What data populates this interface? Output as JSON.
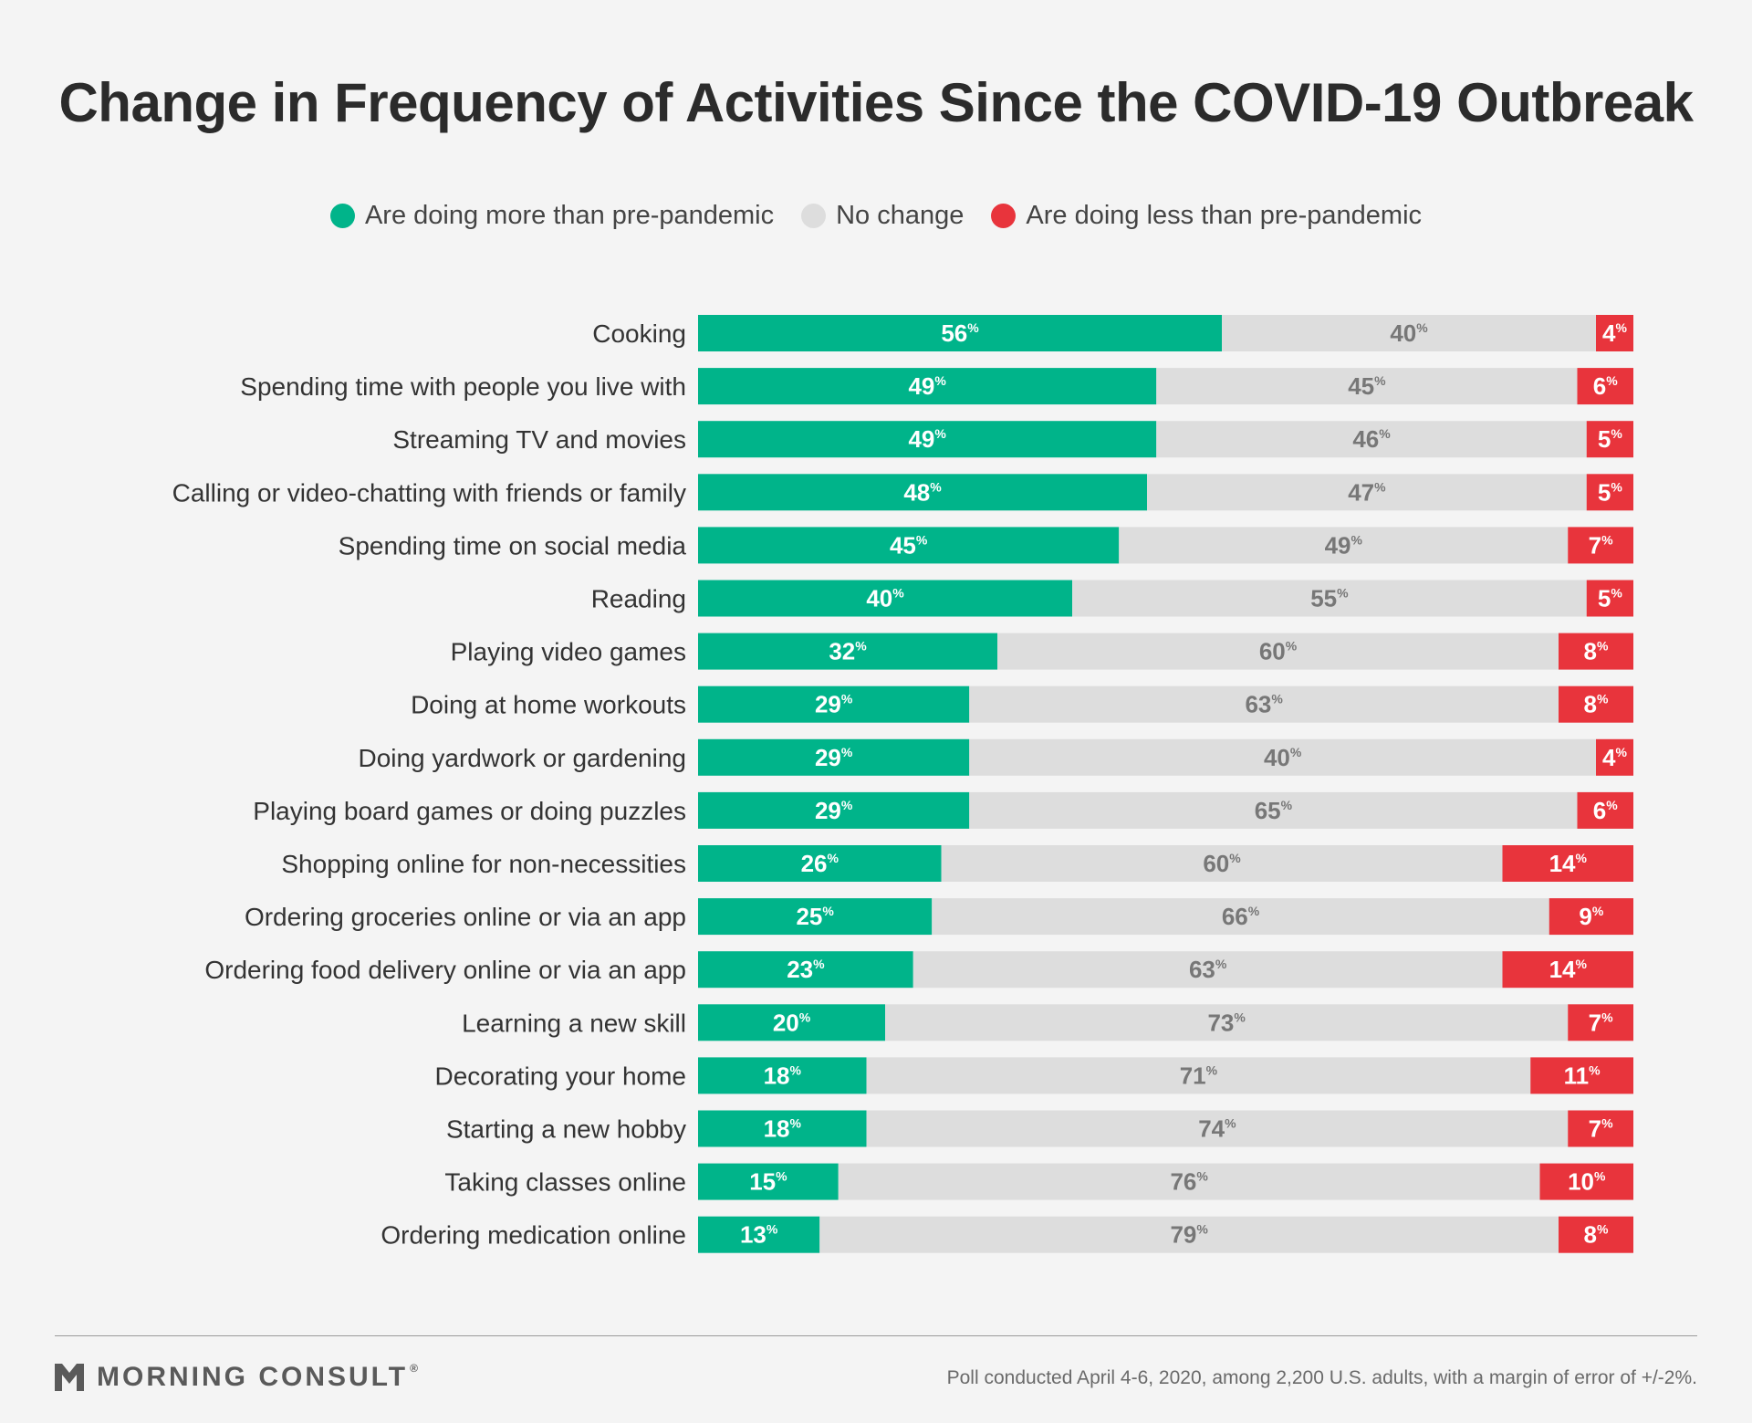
{
  "title": "Change in Frequency of Activities Since the COVID-19 Outbreak",
  "legend": [
    {
      "label": "Are doing more than pre-pandemic",
      "color": "#00b48a"
    },
    {
      "label": "No change",
      "color": "#dddddd"
    },
    {
      "label": "Are doing less than pre-pandemic",
      "color": "#e8343c"
    }
  ],
  "chart_data": {
    "type": "bar",
    "orientation": "horizontal",
    "stacked": true,
    "value_suffix": "%",
    "categories": [
      "Cooking",
      "Spending time with people you live with",
      "Streaming TV and movies",
      "Calling or video-chatting with friends or family",
      "Spending time on social media",
      "Reading",
      "Playing video games",
      "Doing at home workouts",
      "Doing yardwork or gardening",
      "Playing board games or doing puzzles",
      "Shopping online for non-necessities",
      "Ordering groceries online or via an app",
      "Ordering food delivery online or via an app",
      "Learning a new skill",
      "Decorating your home",
      "Starting a new hobby",
      "Taking classes online",
      "Ordering medication online"
    ],
    "series": [
      {
        "name": "Are doing more than pre-pandemic",
        "color": "#00b48a",
        "values": [
          56,
          49,
          49,
          48,
          45,
          40,
          32,
          29,
          29,
          29,
          26,
          25,
          23,
          20,
          18,
          18,
          15,
          13
        ]
      },
      {
        "name": "No change",
        "color": "#dddddd",
        "values": [
          40,
          45,
          46,
          47,
          49,
          55,
          60,
          63,
          40,
          65,
          60,
          66,
          63,
          73,
          71,
          74,
          76,
          79
        ]
      },
      {
        "name": "Are doing less than pre-pandemic",
        "color": "#e8343c",
        "values": [
          4,
          6,
          5,
          5,
          7,
          5,
          8,
          8,
          4,
          6,
          14,
          9,
          14,
          7,
          11,
          7,
          10,
          8
        ]
      }
    ],
    "xlim": [
      0,
      100
    ]
  },
  "brand": {
    "name": "MORNING CONSULT",
    "mark": "®"
  },
  "source": "Poll conducted April 4-6, 2020, among 2,200 U.S. adults, with a margin of error of +/-2%."
}
